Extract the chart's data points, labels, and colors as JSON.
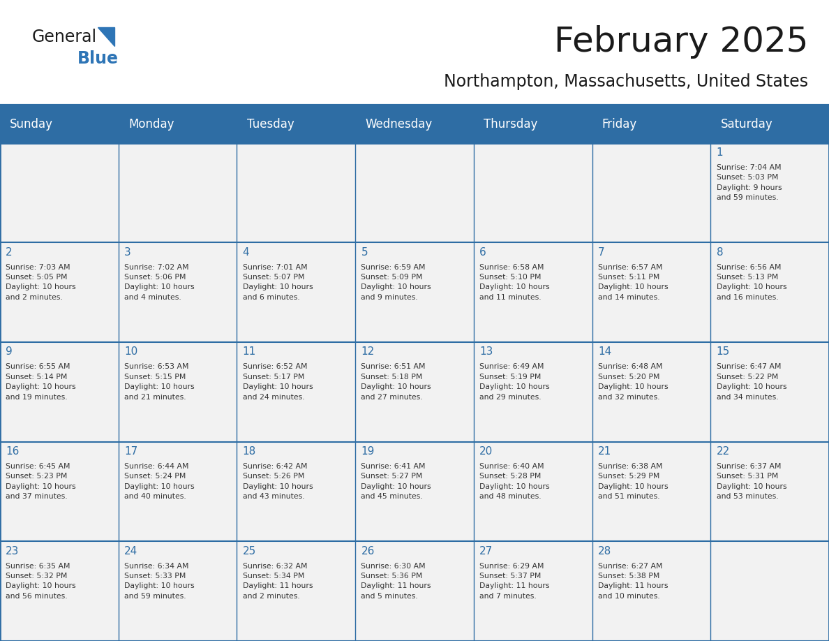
{
  "title": "February 2025",
  "subtitle": "Northampton, Massachusetts, United States",
  "days_of_week": [
    "Sunday",
    "Monday",
    "Tuesday",
    "Wednesday",
    "Thursday",
    "Friday",
    "Saturday"
  ],
  "header_bg": "#2E6DA4",
  "header_text": "#FFFFFF",
  "cell_bg_light": "#F2F2F2",
  "border_color": "#2E6DA4",
  "title_color": "#1a1a1a",
  "day_number_color": "#2E6DA4",
  "cell_text_color": "#333333",
  "logo_general_color": "#1a1a1a",
  "logo_blue_color": "#2E75B6",
  "weeks": [
    [
      {
        "day": null,
        "info": ""
      },
      {
        "day": null,
        "info": ""
      },
      {
        "day": null,
        "info": ""
      },
      {
        "day": null,
        "info": ""
      },
      {
        "day": null,
        "info": ""
      },
      {
        "day": null,
        "info": ""
      },
      {
        "day": 1,
        "info": "Sunrise: 7:04 AM\nSunset: 5:03 PM\nDaylight: 9 hours\nand 59 minutes."
      }
    ],
    [
      {
        "day": 2,
        "info": "Sunrise: 7:03 AM\nSunset: 5:05 PM\nDaylight: 10 hours\nand 2 minutes."
      },
      {
        "day": 3,
        "info": "Sunrise: 7:02 AM\nSunset: 5:06 PM\nDaylight: 10 hours\nand 4 minutes."
      },
      {
        "day": 4,
        "info": "Sunrise: 7:01 AM\nSunset: 5:07 PM\nDaylight: 10 hours\nand 6 minutes."
      },
      {
        "day": 5,
        "info": "Sunrise: 6:59 AM\nSunset: 5:09 PM\nDaylight: 10 hours\nand 9 minutes."
      },
      {
        "day": 6,
        "info": "Sunrise: 6:58 AM\nSunset: 5:10 PM\nDaylight: 10 hours\nand 11 minutes."
      },
      {
        "day": 7,
        "info": "Sunrise: 6:57 AM\nSunset: 5:11 PM\nDaylight: 10 hours\nand 14 minutes."
      },
      {
        "day": 8,
        "info": "Sunrise: 6:56 AM\nSunset: 5:13 PM\nDaylight: 10 hours\nand 16 minutes."
      }
    ],
    [
      {
        "day": 9,
        "info": "Sunrise: 6:55 AM\nSunset: 5:14 PM\nDaylight: 10 hours\nand 19 minutes."
      },
      {
        "day": 10,
        "info": "Sunrise: 6:53 AM\nSunset: 5:15 PM\nDaylight: 10 hours\nand 21 minutes."
      },
      {
        "day": 11,
        "info": "Sunrise: 6:52 AM\nSunset: 5:17 PM\nDaylight: 10 hours\nand 24 minutes."
      },
      {
        "day": 12,
        "info": "Sunrise: 6:51 AM\nSunset: 5:18 PM\nDaylight: 10 hours\nand 27 minutes."
      },
      {
        "day": 13,
        "info": "Sunrise: 6:49 AM\nSunset: 5:19 PM\nDaylight: 10 hours\nand 29 minutes."
      },
      {
        "day": 14,
        "info": "Sunrise: 6:48 AM\nSunset: 5:20 PM\nDaylight: 10 hours\nand 32 minutes."
      },
      {
        "day": 15,
        "info": "Sunrise: 6:47 AM\nSunset: 5:22 PM\nDaylight: 10 hours\nand 34 minutes."
      }
    ],
    [
      {
        "day": 16,
        "info": "Sunrise: 6:45 AM\nSunset: 5:23 PM\nDaylight: 10 hours\nand 37 minutes."
      },
      {
        "day": 17,
        "info": "Sunrise: 6:44 AM\nSunset: 5:24 PM\nDaylight: 10 hours\nand 40 minutes."
      },
      {
        "day": 18,
        "info": "Sunrise: 6:42 AM\nSunset: 5:26 PM\nDaylight: 10 hours\nand 43 minutes."
      },
      {
        "day": 19,
        "info": "Sunrise: 6:41 AM\nSunset: 5:27 PM\nDaylight: 10 hours\nand 45 minutes."
      },
      {
        "day": 20,
        "info": "Sunrise: 6:40 AM\nSunset: 5:28 PM\nDaylight: 10 hours\nand 48 minutes."
      },
      {
        "day": 21,
        "info": "Sunrise: 6:38 AM\nSunset: 5:29 PM\nDaylight: 10 hours\nand 51 minutes."
      },
      {
        "day": 22,
        "info": "Sunrise: 6:37 AM\nSunset: 5:31 PM\nDaylight: 10 hours\nand 53 minutes."
      }
    ],
    [
      {
        "day": 23,
        "info": "Sunrise: 6:35 AM\nSunset: 5:32 PM\nDaylight: 10 hours\nand 56 minutes."
      },
      {
        "day": 24,
        "info": "Sunrise: 6:34 AM\nSunset: 5:33 PM\nDaylight: 10 hours\nand 59 minutes."
      },
      {
        "day": 25,
        "info": "Sunrise: 6:32 AM\nSunset: 5:34 PM\nDaylight: 11 hours\nand 2 minutes."
      },
      {
        "day": 26,
        "info": "Sunrise: 6:30 AM\nSunset: 5:36 PM\nDaylight: 11 hours\nand 5 minutes."
      },
      {
        "day": 27,
        "info": "Sunrise: 6:29 AM\nSunset: 5:37 PM\nDaylight: 11 hours\nand 7 minutes."
      },
      {
        "day": 28,
        "info": "Sunrise: 6:27 AM\nSunset: 5:38 PM\nDaylight: 11 hours\nand 10 minutes."
      },
      {
        "day": null,
        "info": ""
      }
    ]
  ],
  "figsize": [
    11.88,
    9.18
  ],
  "dpi": 100
}
